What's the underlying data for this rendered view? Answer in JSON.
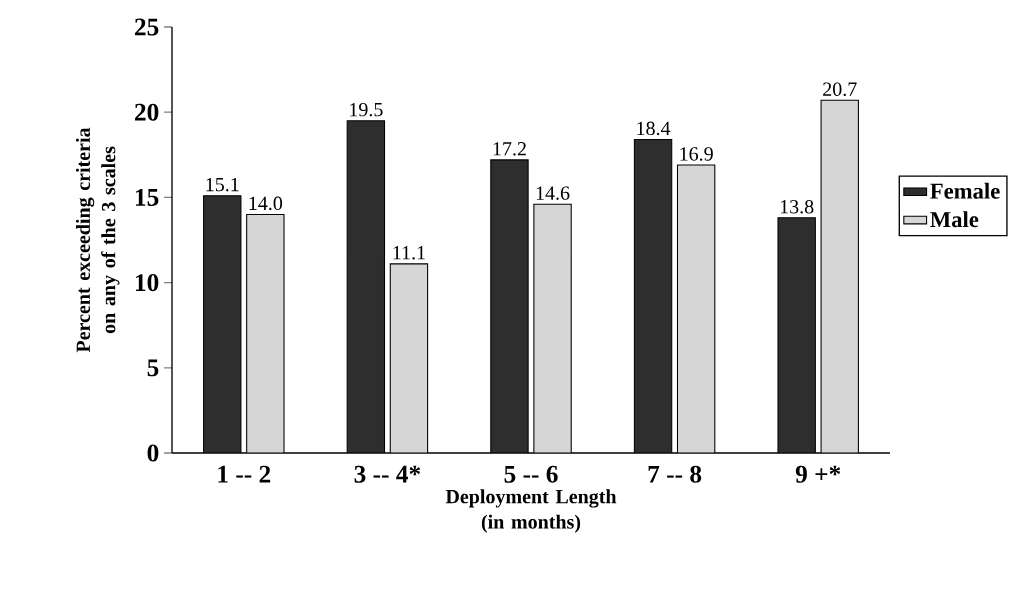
{
  "chart_data": {
    "type": "bar",
    "xlabel": "Deployment Length (in months)",
    "ylabel": "Percent exceeding criteria on any of the 3 scales",
    "categories": [
      "1 -- 2",
      "3 -- 4*",
      "5 -- 6",
      "7 -- 8",
      "9 +*"
    ],
    "series": [
      {
        "name": "Female",
        "color": "#2e2e2e",
        "values": [
          15.1,
          19.5,
          17.2,
          18.4,
          13.8
        ],
        "value_labels": [
          "15.1",
          "19.5",
          "17.2",
          "18.4",
          "13.8"
        ]
      },
      {
        "name": "Male",
        "color": "#d6d6d6",
        "values": [
          14.0,
          11.1,
          14.6,
          16.9,
          20.7
        ],
        "value_labels": [
          "14.0",
          "11.1",
          "14.6",
          "16.9",
          "20.7"
        ]
      }
    ],
    "ylim": [
      0,
      25
    ],
    "yticks": [
      0,
      5,
      10,
      15,
      20,
      25
    ],
    "legend": "right"
  }
}
